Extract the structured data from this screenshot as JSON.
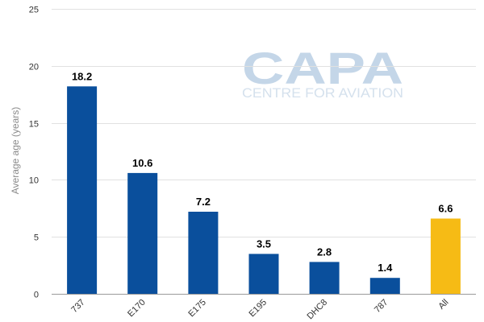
{
  "watermark": {
    "logo_text": "CAPA",
    "tagline": "CENTRE FOR AVIATION"
  },
  "chart_data": {
    "type": "bar",
    "title": "",
    "xlabel": "",
    "ylabel": "Average age (years)",
    "ylim": [
      0,
      25
    ],
    "yticks": [
      0,
      5,
      10,
      15,
      20,
      25
    ],
    "categories": [
      "737",
      "E170",
      "E175",
      "E195",
      "DHC8",
      "787",
      "All"
    ],
    "values": [
      18.2,
      10.6,
      7.2,
      3.5,
      2.8,
      1.4,
      6.6
    ],
    "data_labels": [
      "18.2",
      "10.6",
      "7.2",
      "3.5",
      "2.8",
      "1.4",
      "6.6"
    ],
    "colors": {
      "default_bar": "#0a4f9c",
      "highlight_bar": "#f6bb15"
    },
    "highlight_category": "All",
    "grid": true,
    "legend": "none"
  }
}
